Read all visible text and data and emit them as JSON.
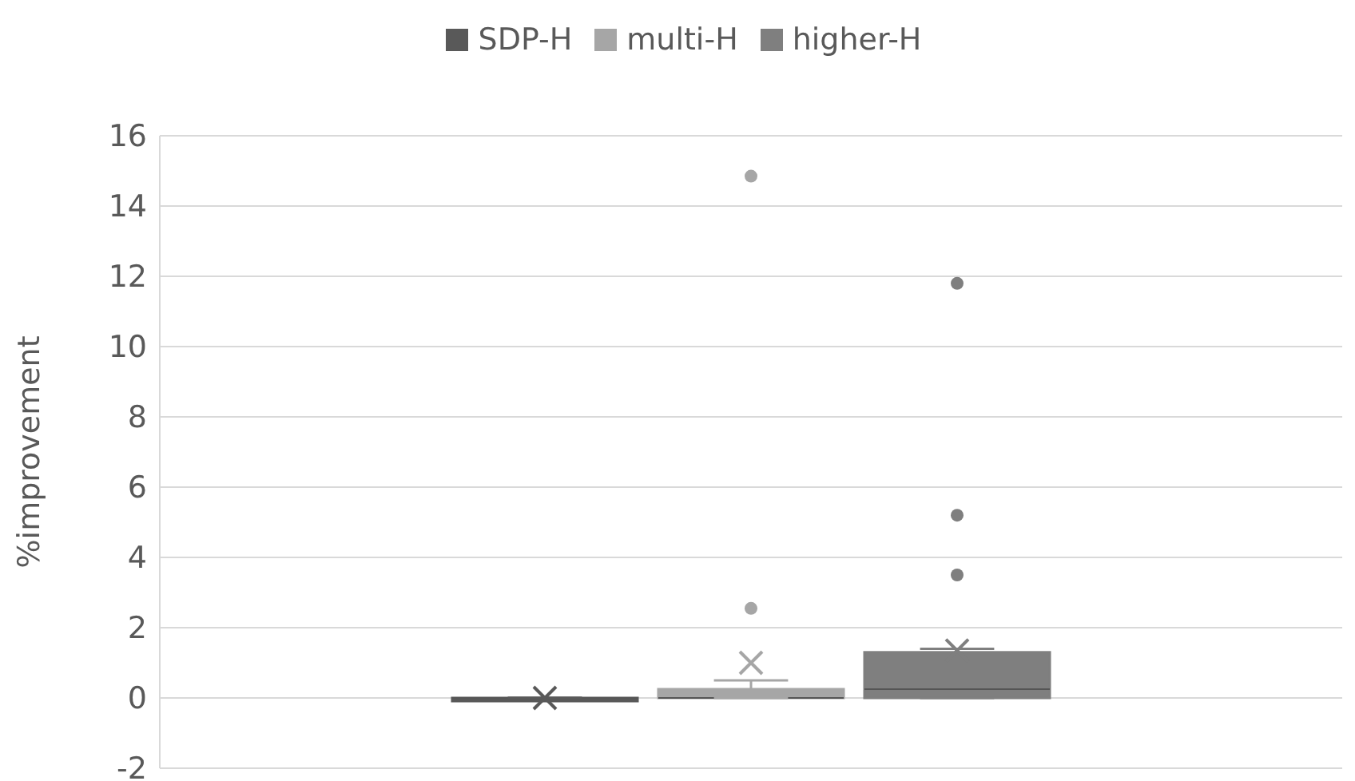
{
  "chart_data": {
    "type": "box",
    "categories": [
      null
    ],
    "ylabel": "%improvement",
    "ylim": [
      -2,
      16
    ],
    "yticks": [
      -2,
      0,
      2,
      4,
      6,
      8,
      10,
      12,
      14,
      16
    ],
    "grid": "y",
    "legend": "top",
    "series": [
      {
        "name": "SDP-H",
        "color": "#595959",
        "boxes": [
          {
            "low": 0,
            "q1": 0,
            "median": 0,
            "q3": 0,
            "high": 0,
            "mean": 0
          }
        ]
      },
      {
        "name": "multi-H",
        "color": "#a6a6a6",
        "boxes": [
          {
            "low": 0,
            "q1": 0,
            "median": 0,
            "q3": 0.25,
            "high": 0.5,
            "mean": 1.0,
            "outliers": [
              14.85,
              2.55
            ]
          }
        ]
      },
      {
        "name": "higher-H",
        "color": "#7f7f7f",
        "boxes": [
          {
            "low": 0,
            "q1": 0,
            "median": 0.25,
            "q3": 1.3,
            "high": 1.4,
            "mean": 1.35,
            "outliers": [
              11.8,
              5.2,
              3.5
            ]
          }
        ]
      }
    ]
  }
}
